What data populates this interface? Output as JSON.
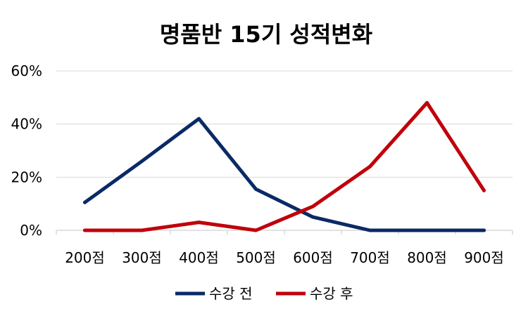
{
  "chart_data": {
    "type": "line",
    "title": "명품반 15기 성적변화",
    "xlabel": "",
    "ylabel": "",
    "categories": [
      "200점",
      "300점",
      "400점",
      "500점",
      "600점",
      "700점",
      "800점",
      "900점"
    ],
    "ylim": [
      0,
      60
    ],
    "yticks": [
      0,
      20,
      40,
      60
    ],
    "ytick_labels": [
      "0%",
      "20%",
      "40%",
      "60%"
    ],
    "grid": true,
    "legend": "bottom",
    "series": [
      {
        "name": "수강 전",
        "color": "#0a2a66",
        "values": [
          10.5,
          26,
          42,
          15.5,
          5,
          0,
          0,
          0
        ]
      },
      {
        "name": "수강 후",
        "color": "#c0000b",
        "values": [
          0,
          0,
          3,
          0,
          9,
          24,
          48,
          15
        ]
      }
    ]
  }
}
